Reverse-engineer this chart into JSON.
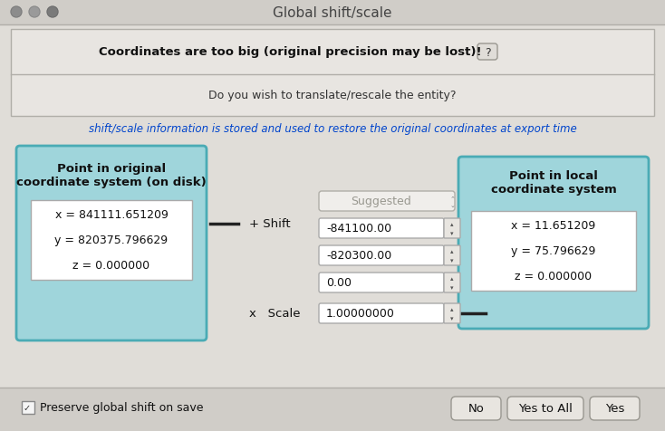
{
  "window_title": "Global shift/scale",
  "bg_color": "#d8d5d1",
  "titlebar_color": "#d0cdc8",
  "titlebar_btn_colors": [
    "#8a8a8a",
    "#9a9a9a",
    "#777777"
  ],
  "body_bg": "#e0ddd8",
  "panel_bg": "#e8e5e1",
  "panel_border": "#b0aea8",
  "warning_text": "Coordinates are too big (original precision may be lost)!",
  "question_text": "Do you wish to translate/rescale the entity?",
  "info_text": "shift/scale information is stored and used to restore the original coordinates at export time",
  "info_color": "#0044cc",
  "left_box_title": "Point in original\ncoordinate system (on disk)",
  "left_box_bg": "#9fd5db",
  "left_box_border": "#4aabb5",
  "left_coords": [
    "x = 841111.651209",
    "y = 820375.796629",
    "z = 0.000000"
  ],
  "right_box_title": "Point in local\ncoordinate system",
  "right_box_bg": "#9fd5db",
  "right_box_border": "#4aabb5",
  "right_coords": [
    "x = 11.651209",
    "y = 75.796629",
    "z = 0.000000"
  ],
  "suggested_text": "Suggested",
  "shift_label": "+ Shift",
  "scale_label": "x   Scale",
  "shift_values": [
    "-841100.00",
    "-820300.00",
    "0.00"
  ],
  "scale_val": "1.00000000",
  "preserve_text": "Preserve global shift on save",
  "btn_no": "No",
  "btn_yes_all": "Yes to All",
  "btn_yes": "Yes",
  "input_bg": "#ffffff",
  "input_border": "#aaaaaa",
  "dropdown_bg": "#f0eeeb",
  "dropdown_border": "#b0aea8",
  "dropdown_text_color": "#999890",
  "spinner_color": "#888888"
}
